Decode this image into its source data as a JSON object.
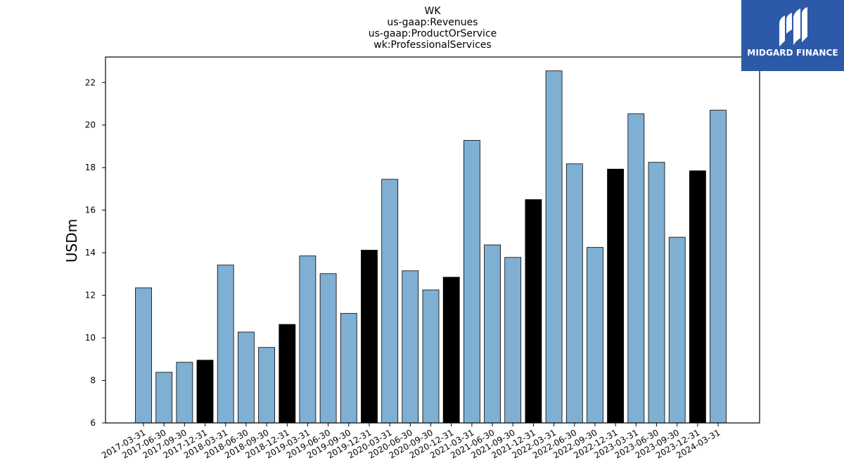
{
  "chart_data": {
    "type": "bar",
    "title_lines": [
      "WK",
      "us-gaap:Revenues",
      "us-gaap:ProductOrService",
      "wk:ProfessionalServices"
    ],
    "ylabel": "USDm",
    "xlabel": "",
    "ylim": [
      6,
      23.2
    ],
    "yticks": [
      6,
      8,
      10,
      12,
      14,
      16,
      18,
      20,
      22
    ],
    "grid": false,
    "categories": [
      "2017-03-31",
      "2017-06-30",
      "2017-09-30",
      "2017-12-31",
      "2018-03-31",
      "2018-06-30",
      "2018-09-30",
      "2018-12-31",
      "2019-03-31",
      "2019-06-30",
      "2019-09-30",
      "2019-12-31",
      "2020-03-31",
      "2020-06-30",
      "2020-09-30",
      "2020-12-31",
      "2021-03-31",
      "2021-06-30",
      "2021-09-30",
      "2021-12-31",
      "2022-03-31",
      "2022-06-30",
      "2022-09-30",
      "2022-12-31",
      "2023-03-31",
      "2023-06-30",
      "2023-09-30",
      "2023-12-31",
      "2024-03-31"
    ],
    "values": [
      12.35,
      8.38,
      8.85,
      8.95,
      13.42,
      10.27,
      9.55,
      10.63,
      13.85,
      13.02,
      11.15,
      14.12,
      17.45,
      13.15,
      12.25,
      12.85,
      19.28,
      14.37,
      13.78,
      16.5,
      22.55,
      18.18,
      14.25,
      17.93,
      20.53,
      18.25,
      14.73,
      17.85,
      20.7
    ],
    "quarter_type": [
      "Q",
      "Q",
      "Q",
      "FY",
      "Q",
      "Q",
      "Q",
      "FY",
      "Q",
      "Q",
      "Q",
      "FY",
      "Q",
      "Q",
      "Q",
      "FY",
      "Q",
      "Q",
      "Q",
      "FY",
      "Q",
      "Q",
      "Q",
      "FY",
      "Q",
      "Q",
      "Q",
      "FY",
      "Q"
    ],
    "colors": {
      "quarter": "#7fafd3",
      "year_end": "#000000",
      "edge": "#000000"
    }
  },
  "logo": {
    "text": "MIDGARD FINANCE",
    "background": "#2c5aa8"
  }
}
